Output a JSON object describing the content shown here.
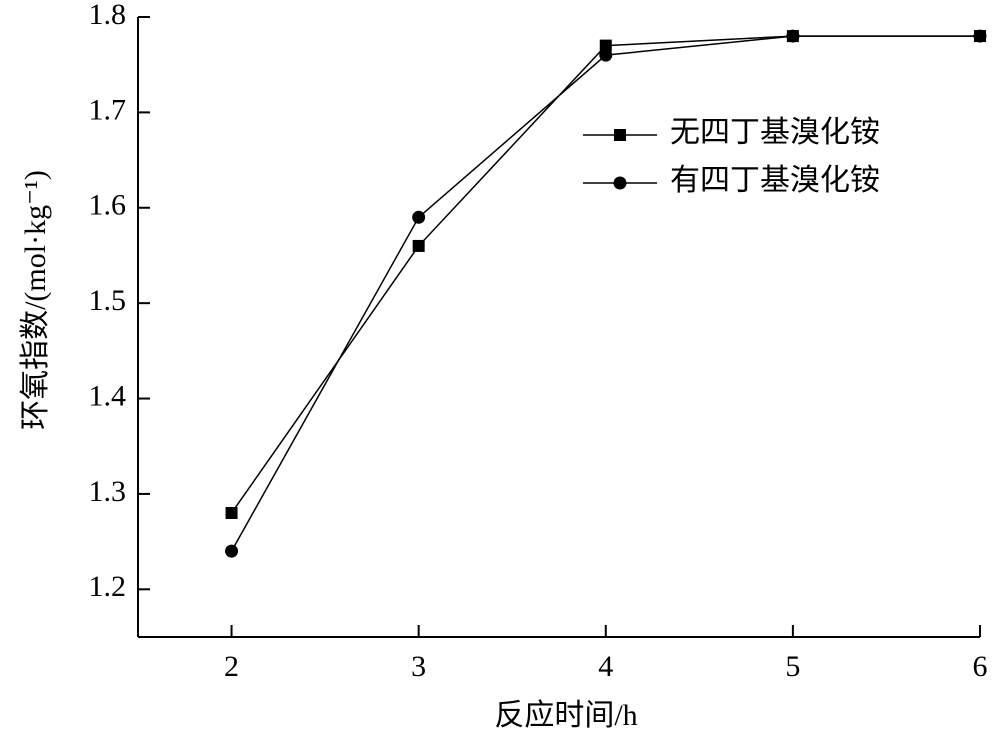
{
  "chart_data": {
    "type": "line",
    "x_label": "反应时间/h",
    "y_label": "环氧指数/(mol·kg⁻¹)",
    "x": [
      2,
      3,
      4,
      5,
      6
    ],
    "series": [
      {
        "name": "无四丁基溴化铵",
        "color": "#000000",
        "marker": "square",
        "values": [
          1.28,
          1.56,
          1.77,
          1.78,
          1.78
        ]
      },
      {
        "name": "有四丁基溴化铵",
        "color": "#000000",
        "marker": "circle",
        "values": [
          1.24,
          1.59,
          1.76,
          1.78,
          1.78
        ]
      }
    ],
    "xlim": [
      1.5,
      6
    ],
    "xticks": [
      2,
      3,
      4,
      5,
      6
    ],
    "ylim": [
      1.15,
      1.8
    ],
    "yticks": [
      1.2,
      1.3,
      1.4,
      1.5,
      1.6,
      1.7,
      1.8
    ],
    "grid": false,
    "legend": "upper right"
  }
}
